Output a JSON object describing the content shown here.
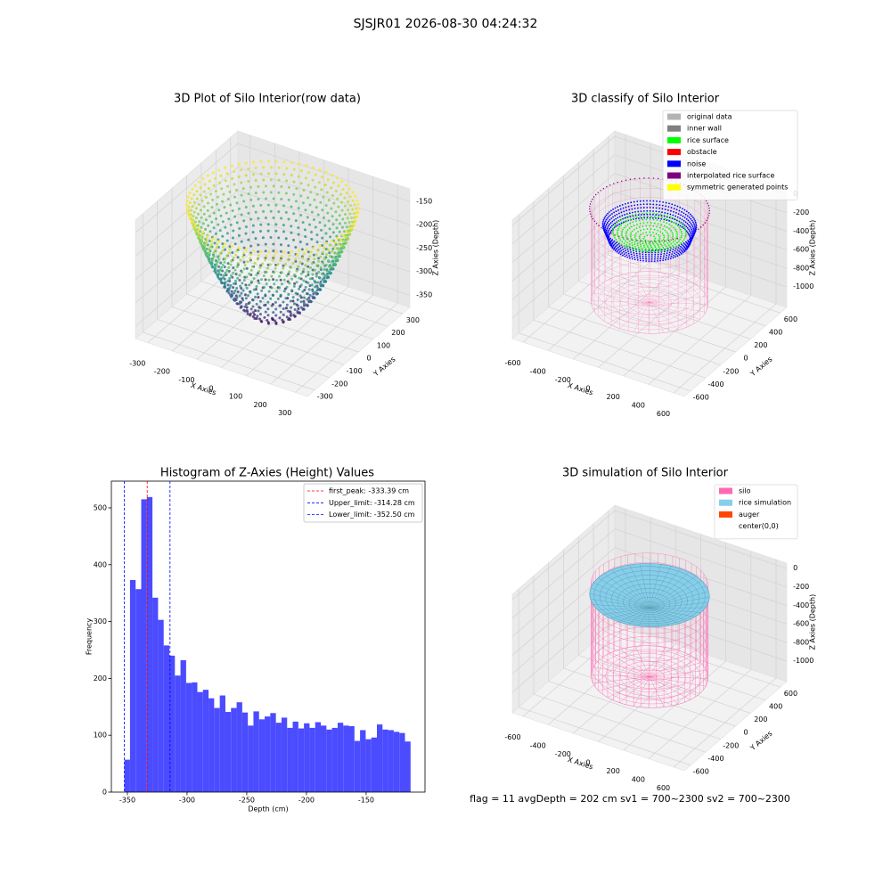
{
  "title": "SJSJR01 2026-08-30 04:24:32",
  "footer": "flag = 11   avgDepth = 202 cm  sv1 = 700~2300  sv2 = 700~2300",
  "chart_data": [
    {
      "type": "scatter3d",
      "title": "3D Plot of Silo Interior(row data)",
      "xlabel": "X Axies",
      "ylabel": "Y Axies",
      "zlabel": "Z Axies (Depth)",
      "xlim": [
        -350,
        350
      ],
      "ylim": [
        -350,
        350
      ],
      "zlim": [
        -376,
        -123
      ],
      "xticks": [
        -300,
        -200,
        -100,
        0,
        100,
        200,
        300
      ],
      "yticks": [
        -300,
        -200,
        -100,
        0,
        100,
        200,
        300
      ],
      "zticks": [
        -350,
        -300,
        -250,
        -200,
        -150
      ]
    },
    {
      "type": "scatter3d",
      "title": "3D classify of Silo Interior",
      "xlabel": "X Axies",
      "ylabel": "Y Axies",
      "zlabel": "Z Axies (Depth)",
      "xlim": [
        -685,
        685
      ],
      "ylim": [
        -685,
        685
      ],
      "zlim": [
        -1221,
        58
      ],
      "xticks": [
        -600,
        -400,
        -200,
        0,
        200,
        400,
        600
      ],
      "yticks": [
        -600,
        -400,
        -200,
        0,
        200,
        400,
        600
      ],
      "zticks": [
        -1000,
        -800,
        -600,
        -400,
        -200,
        0
      ],
      "legend": [
        {
          "name": "original data",
          "color": "#b3b3b3"
        },
        {
          "name": "inner wall",
          "color": "#808080"
        },
        {
          "name": "rice surface",
          "color": "#00ff00"
        },
        {
          "name": "obstacle",
          "color": "#ff0000"
        },
        {
          "name": "noise",
          "color": "#0000ff"
        },
        {
          "name": "interpolated rice surface",
          "color": "#800080"
        },
        {
          "name": "symmetric generated points",
          "color": "#ffff00"
        }
      ]
    },
    {
      "type": "histogram",
      "title": "Histogram of Z-Axies (Height) Values",
      "xlabel": "Depth (cm)",
      "ylabel": "Frequency",
      "color": "#4b4bff",
      "bins": [
        -352.5,
        -347.8,
        -343.1,
        -338.4,
        -333.7,
        -329.0,
        -324.3,
        -319.6,
        -314.9,
        -310.2,
        -305.5,
        -300.8,
        -296.1,
        -291.4,
        -286.7,
        -282.0,
        -277.3,
        -272.6,
        -267.9,
        -263.2,
        -258.5,
        -253.8,
        -249.1,
        -244.4,
        -239.7,
        -235.0,
        -230.3,
        -225.6,
        -220.9,
        -216.2,
        -211.5,
        -206.8,
        -202.1,
        -197.4,
        -192.7,
        -188.0,
        -183.3,
        -178.6,
        -173.9,
        -169.2,
        -164.5,
        -159.8,
        -155.1,
        -150.4,
        -145.7,
        -141.0,
        -136.3,
        -131.6,
        -126.9,
        -122.2,
        -117.5,
        -112.8
      ],
      "values": [
        57,
        373,
        357,
        515,
        519,
        342,
        303,
        258,
        240,
        205,
        232,
        192,
        193,
        176,
        180,
        165,
        148,
        170,
        141,
        148,
        158,
        140,
        117,
        142,
        128,
        133,
        139,
        122,
        131,
        113,
        124,
        112,
        121,
        113,
        123,
        117,
        110,
        113,
        122,
        117,
        116,
        90,
        109,
        93,
        96,
        119,
        110,
        109,
        106,
        104,
        89
      ],
      "xlim": [
        -363.4,
        -100.7
      ],
      "ylim": [
        0,
        547
      ],
      "xticks": [
        -350,
        -300,
        -250,
        -200,
        -150
      ],
      "yticks": [
        0,
        100,
        200,
        300,
        400,
        500
      ],
      "vlines": [
        {
          "name": "first_peak: -333.39 cm",
          "value": -333.39,
          "color": "#ff0000"
        },
        {
          "name": "Upper_limit: -314.28 cm",
          "value": -314.28,
          "color": "#0000ff"
        },
        {
          "name": "Lower_limit: -352.50 cm",
          "value": -352.5,
          "color": "#0000ff"
        }
      ],
      "legend_loc": "upper right"
    },
    {
      "type": "surface3d",
      "title": "3D simulation of Silo Interior",
      "xlabel": "X Axies",
      "ylabel": "Y Axies",
      "zlabel": "Z Axies (Depth)",
      "xlim": [
        -685,
        685
      ],
      "ylim": [
        -685,
        685
      ],
      "zlim": [
        -1221,
        58
      ],
      "xticks": [
        -600,
        -400,
        -200,
        0,
        200,
        400,
        600
      ],
      "yticks": [
        -600,
        -400,
        -200,
        0,
        200,
        400,
        600
      ],
      "zticks": [
        -1000,
        -800,
        -600,
        -400,
        -200,
        0
      ],
      "legend": [
        {
          "name": "silo",
          "color": "#ff69b4"
        },
        {
          "name": "rice simulation",
          "color": "#87ceeb"
        },
        {
          "name": "auger",
          "color": "#ff4500"
        },
        {
          "name": "center(0,0)",
          "color": "#ffffff"
        }
      ]
    }
  ]
}
